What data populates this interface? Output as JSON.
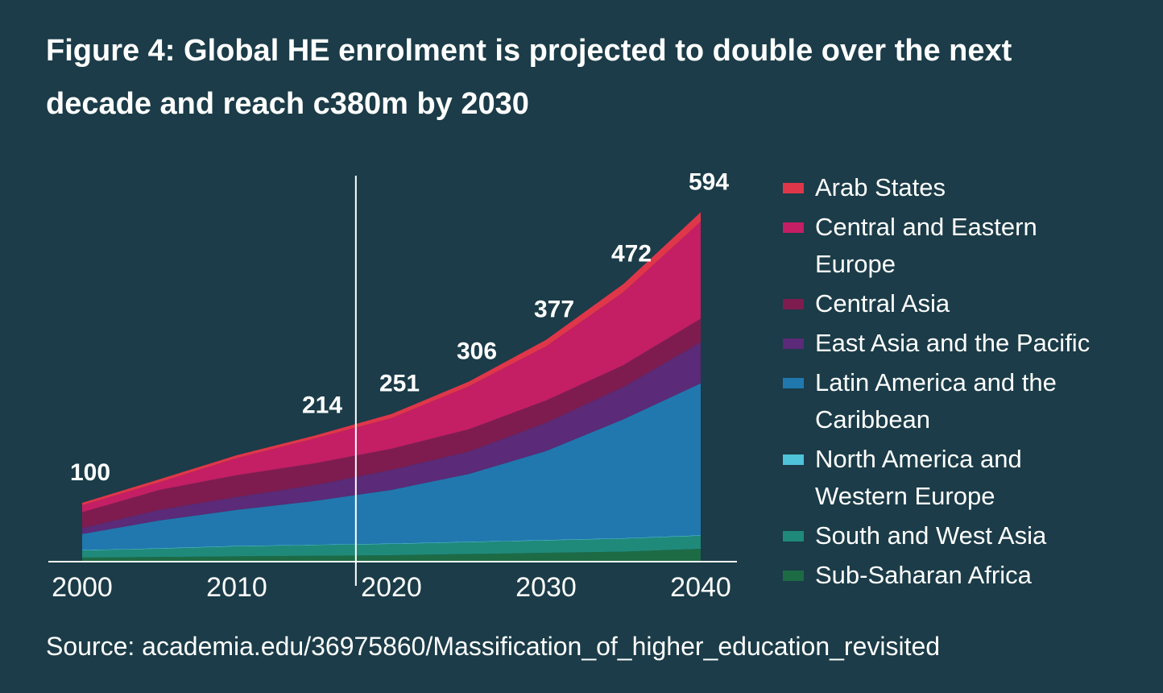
{
  "chart_data": {
    "type": "stacked_area",
    "title": "Figure 4: Global HE enrolment is projected to double over the next decade and reach c380m by 2030",
    "source": "Source: academia.edu/36975860/Massification_of_higher_education_revisited",
    "x": [
      2000,
      2005,
      2010,
      2015,
      2020,
      2025,
      2030,
      2035,
      2040
    ],
    "series": [
      {
        "name": "Sub-Saharan Africa",
        "color": "#1d6b45",
        "values": [
          7,
          8,
          9,
          10,
          11,
          13,
          15,
          17,
          22
        ]
      },
      {
        "name": "South and West Asia",
        "color": "#1f8a7a",
        "values": [
          12,
          14,
          17,
          18,
          19,
          20,
          21,
          22,
          22
        ]
      },
      {
        "name": "North America and Western Europe",
        "color": "#4fc3d9",
        "values": [
          1,
          1,
          1,
          1,
          1,
          1,
          1,
          1,
          1
        ]
      },
      {
        "name": "Latin America and the Caribbean",
        "color": "#2178ae",
        "values": [
          27,
          47,
          61,
          74,
          91,
          115,
          151,
          202,
          258
        ]
      },
      {
        "name": "East Asia and the Pacific",
        "color": "#5b2a78",
        "values": [
          10,
          18,
          22,
          27,
          34,
          38,
          48,
          55,
          70
        ]
      },
      {
        "name": "Central Asia",
        "color": "#7e1c50",
        "values": [
          27,
          34,
          37,
          37,
          36,
          38,
          38,
          37,
          40
        ]
      },
      {
        "name": "Central and Eastern Europe",
        "color": "#c41e64",
        "values": [
          12,
          13,
          29,
          42,
          52,
          73,
          92,
          124,
          165
        ]
      },
      {
        "name": "Arab States",
        "color": "#e0364a",
        "values": [
          4,
          5,
          5,
          5,
          7,
          8,
          11,
          14,
          16
        ]
      }
    ],
    "totals": {
      "x": [
        2000,
        2015,
        2020,
        2025,
        2030,
        2035,
        2040
      ],
      "values": [
        100,
        214,
        251,
        306,
        377,
        472,
        594
      ]
    },
    "marker_x": 2017.7,
    "xlim": [
      2000,
      2040
    ],
    "xticks": [
      2000,
      2010,
      2020,
      2030,
      2040
    ],
    "ylim": [
      0,
      650
    ]
  }
}
